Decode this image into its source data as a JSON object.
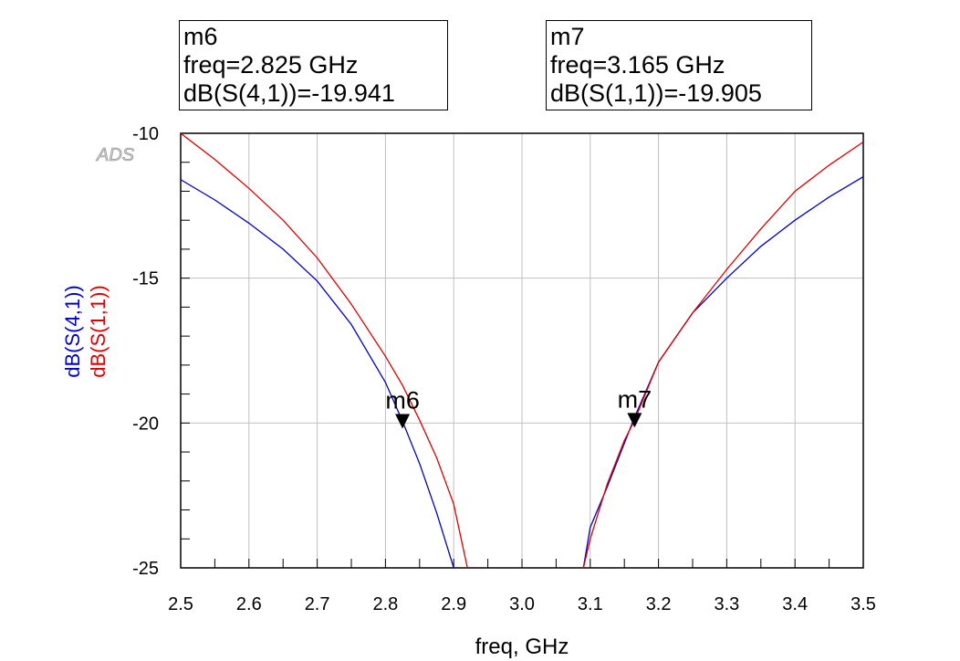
{
  "watermark": "ADS",
  "markers": [
    {
      "name": "m6",
      "freq_label": "freq=2.825 GHz",
      "value_label": "dB(S(4,1))=-19.941",
      "x": 2.825,
      "y": -19.941,
      "series": "dB(S(4,1))"
    },
    {
      "name": "m7",
      "freq_label": "freq=3.165 GHz",
      "value_label": "dB(S(1,1))=-19.905",
      "x": 3.165,
      "y": -19.905,
      "series": "dB(S(1,1))"
    }
  ],
  "colors": {
    "S41": "#0000c8",
    "S11": "#dc0000",
    "grid": "#c0c0c0",
    "axis": "#000000"
  },
  "chart_data": {
    "type": "line",
    "xlabel": "freq, GHz",
    "ylabel_series": [
      "dB(S(4,1))",
      "dB(S(1,1))"
    ],
    "xlim": [
      2.5,
      3.5
    ],
    "ylim": [
      -25,
      -10
    ],
    "xticks": [
      "2.5",
      "2.6",
      "2.7",
      "2.8",
      "2.9",
      "3.0",
      "3.1",
      "3.2",
      "3.3",
      "3.4",
      "3.5"
    ],
    "yticks": [
      "-10",
      "-15",
      "-20",
      "-25"
    ],
    "grid": true,
    "series": [
      {
        "name": "dB(S(4,1))",
        "color": "#0000c8",
        "x": [
          2.5,
          2.55,
          2.6,
          2.65,
          2.7,
          2.75,
          2.8,
          2.825,
          2.85,
          2.875,
          2.9,
          3.09,
          3.1,
          3.125,
          3.15,
          3.165,
          3.2,
          3.25,
          3.3,
          3.35,
          3.4,
          3.45,
          3.5
        ],
        "y": [
          -11.6,
          -12.3,
          -13.1,
          -14.0,
          -15.1,
          -16.6,
          -18.6,
          -19.941,
          -21.4,
          -23.1,
          -25.0,
          -25.0,
          -23.6,
          -22.2,
          -20.7,
          -19.8,
          -17.9,
          -16.2,
          -15.0,
          -13.9,
          -13.0,
          -12.2,
          -11.5
        ]
      },
      {
        "name": "dB(S(1,1))",
        "color": "#dc0000",
        "x": [
          2.5,
          2.55,
          2.6,
          2.65,
          2.7,
          2.75,
          2.8,
          2.825,
          2.85,
          2.875,
          2.9,
          2.92,
          3.09,
          3.1,
          3.125,
          3.15,
          3.165,
          3.2,
          3.25,
          3.3,
          3.35,
          3.4,
          3.45,
          3.5
        ],
        "y": [
          -10.0,
          -10.9,
          -11.9,
          -13.0,
          -14.3,
          -15.9,
          -17.7,
          -18.7,
          -19.9,
          -21.2,
          -22.8,
          -25.0,
          -25.0,
          -24.0,
          -22.1,
          -20.6,
          -19.905,
          -17.9,
          -16.2,
          -14.7,
          -13.3,
          -12.0,
          -11.1,
          -10.3
        ]
      }
    ]
  }
}
